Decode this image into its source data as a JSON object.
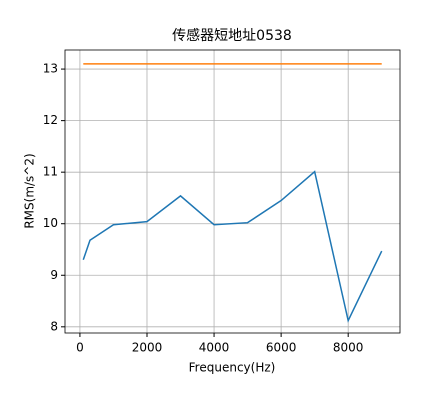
{
  "chart_data": {
    "type": "line",
    "title": "传感器短地址0538",
    "x_label": "Frequency(Hz)",
    "y_label": "RMS(m/s^2)",
    "x": [
      100,
      300,
      1000,
      2000,
      3000,
      4000,
      5000,
      6000,
      7000,
      8000,
      9000
    ],
    "series": [
      {
        "color": "#1f77b4",
        "values": [
          9.3,
          9.68,
          9.98,
          10.04,
          10.54,
          9.98,
          10.02,
          10.45,
          11.01,
          8.12,
          9.47
        ]
      },
      {
        "color": "#ff7f0e",
        "values": [
          13.1,
          13.1,
          13.1,
          13.1,
          13.1,
          13.1,
          13.1,
          13.1,
          13.1,
          13.1,
          13.1
        ]
      }
    ],
    "xlim": [
      -445,
      9545
    ],
    "xticks": [
      0,
      2000,
      4000,
      6000,
      8000
    ],
    "ylim": [
      7.88,
      13.37
    ],
    "yticks": [
      8,
      9,
      10,
      11,
      12,
      13
    ],
    "grid": true
  }
}
